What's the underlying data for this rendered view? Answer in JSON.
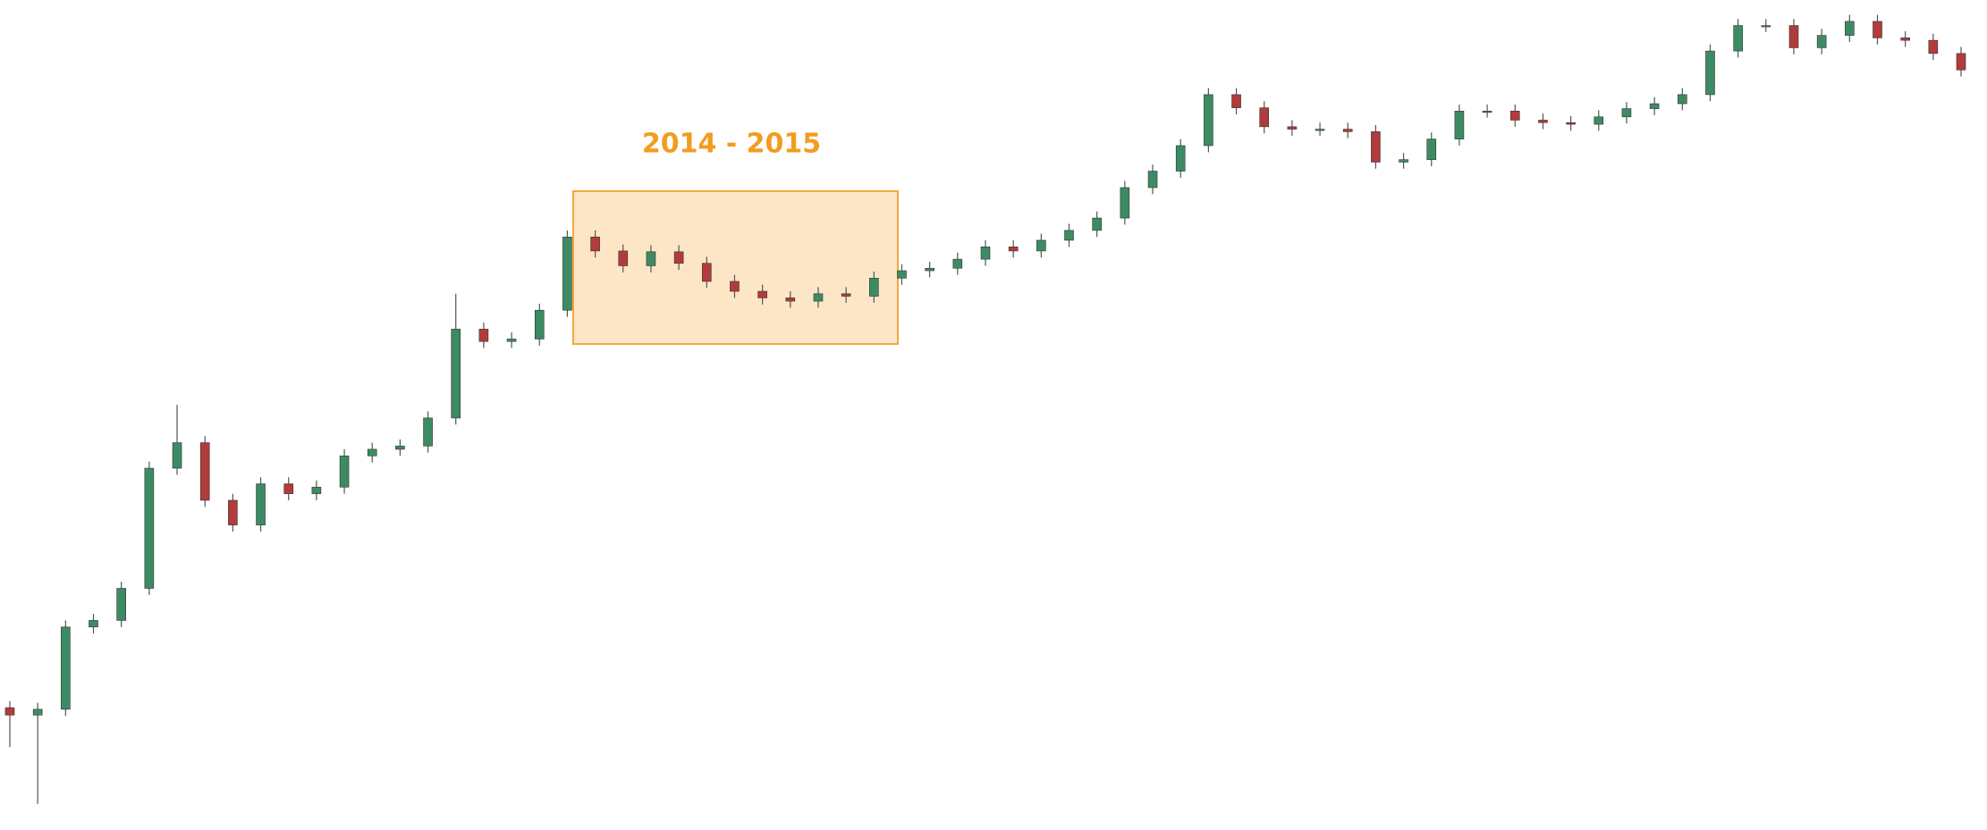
{
  "chart_data": {
    "type": "candlestick",
    "annotation": "2014 - 2015",
    "up_color": "#3d8b63",
    "down_color": "#b23b3b",
    "ylim": [
      0,
      100
    ],
    "open": [
      14.0,
      13.1,
      13.8,
      23.8,
      24.6,
      28.5,
      43.1,
      46.2,
      39.2,
      36.2,
      41.2,
      40.0,
      40.8,
      44.6,
      45.4,
      45.8,
      49.2,
      60.0,
      58.5,
      58.8,
      62.3,
      71.2,
      69.5,
      67.7,
      69.4,
      68.0,
      65.8,
      64.6,
      63.8,
      63.4,
      64.3,
      64.0,
      66.2,
      67.1,
      67.4,
      68.5,
      70.0,
      69.5,
      70.8,
      72.0,
      73.5,
      77.2,
      79.2,
      82.3,
      88.5,
      86.9,
      84.6,
      84.3,
      84.3,
      84.0,
      80.3,
      80.6,
      83.1,
      86.5,
      86.5,
      85.4,
      85.1,
      84.9,
      85.8,
      86.8,
      87.4,
      88.5,
      93.8,
      96.9,
      96.9,
      94.2,
      95.7,
      97.4,
      95.4,
      95.1,
      93.5
    ],
    "high": [
      14.8,
      14.6,
      24.6,
      25.4,
      29.3,
      43.9,
      50.8,
      47.0,
      40.0,
      42.0,
      42.0,
      41.6,
      45.4,
      46.2,
      46.6,
      50.0,
      64.3,
      60.8,
      59.6,
      63.1,
      72.0,
      72.0,
      70.3,
      70.2,
      70.2,
      68.8,
      66.6,
      65.4,
      64.6,
      65.1,
      65.1,
      67.0,
      67.9,
      68.2,
      69.3,
      70.8,
      70.8,
      71.6,
      72.8,
      74.3,
      78.0,
      80.0,
      83.1,
      89.3,
      89.3,
      87.7,
      85.4,
      85.1,
      85.1,
      84.8,
      81.4,
      83.9,
      87.3,
      87.3,
      87.3,
      86.2,
      85.9,
      86.6,
      87.6,
      88.2,
      89.3,
      94.6,
      97.7,
      97.7,
      97.7,
      96.5,
      98.2,
      98.2,
      96.2,
      95.9,
      94.3
    ],
    "low": [
      9.2,
      2.3,
      13.0,
      23.0,
      23.8,
      27.7,
      42.3,
      38.4,
      35.4,
      35.4,
      39.2,
      39.2,
      40.0,
      43.8,
      44.6,
      45.0,
      48.4,
      57.7,
      57.7,
      58.0,
      61.5,
      68.7,
      66.9,
      66.9,
      67.2,
      65.0,
      63.8,
      63.0,
      62.6,
      62.6,
      63.2,
      63.2,
      65.4,
      66.3,
      66.6,
      67.7,
      68.7,
      68.7,
      70.0,
      71.2,
      72.7,
      76.4,
      78.4,
      81.5,
      86.1,
      83.8,
      83.5,
      83.5,
      83.2,
      79.5,
      79.5,
      79.8,
      82.3,
      85.7,
      84.6,
      84.3,
      84.1,
      84.1,
      85.0,
      86.0,
      86.6,
      87.7,
      93.0,
      96.1,
      93.4,
      93.4,
      94.9,
      94.6,
      94.3,
      92.7,
      90.7
    ],
    "close": [
      13.1,
      13.8,
      23.8,
      24.6,
      28.5,
      43.1,
      46.2,
      39.2,
      36.2,
      41.2,
      40.0,
      40.8,
      44.6,
      45.4,
      45.8,
      49.2,
      60.0,
      58.5,
      58.8,
      62.3,
      71.2,
      69.5,
      67.7,
      69.4,
      68.0,
      65.8,
      64.6,
      63.8,
      63.4,
      64.3,
      64.0,
      66.2,
      67.1,
      67.4,
      68.5,
      70.0,
      69.5,
      70.8,
      72.0,
      73.5,
      77.2,
      79.2,
      82.3,
      88.5,
      86.9,
      84.6,
      84.3,
      84.3,
      84.0,
      80.3,
      80.6,
      83.1,
      86.5,
      86.5,
      85.4,
      85.1,
      84.9,
      85.8,
      86.8,
      87.4,
      88.5,
      93.8,
      96.9,
      96.9,
      94.2,
      95.7,
      97.4,
      95.4,
      95.1,
      93.5,
      91.5
    ]
  }
}
